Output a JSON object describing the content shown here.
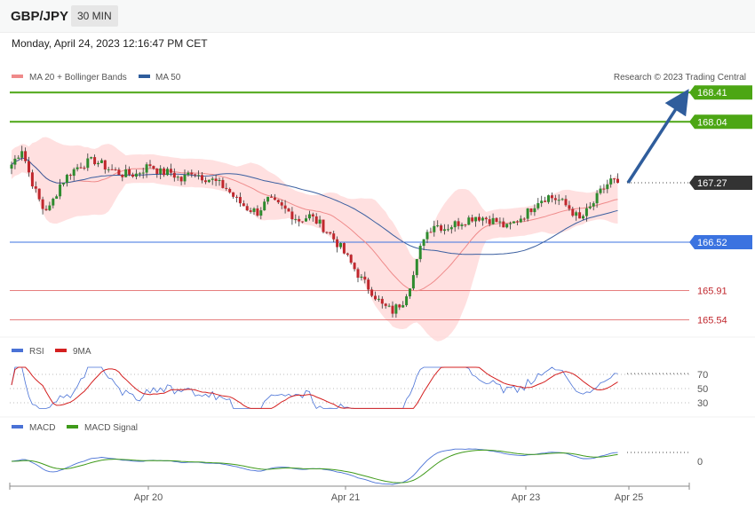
{
  "header": {
    "pair": "GBP/JPY",
    "timeframe": "30 MIN"
  },
  "datetime": "Monday, April 24, 2023 12:16:47 PM CET",
  "credit": "Research © 2023 Trading Central",
  "colors": {
    "up_candle": "#2e8b2e",
    "down_candle": "#c0272d",
    "target": "#4ca614",
    "pivot": "#3b73e0",
    "support": "#e06060",
    "current": "#333333",
    "bollinger": "#ffd5d5",
    "ma20": "#ef8a8a",
    "ma50": "#3b5fa0",
    "arrow": "#2f5d9c",
    "rsi": "#4a72d6",
    "rsi_ma": "#d42020",
    "macd": "#4a72d6",
    "macd_signal": "#3f9a1a"
  },
  "price_panel": {
    "legend": [
      {
        "label": "MA 20 + Bollinger Bands",
        "color": "#ef8a8a"
      },
      {
        "label": "MA 50",
        "color": "#2f5d9c"
      }
    ],
    "levels": [
      {
        "label": "168.41",
        "value": 168.41,
        "kind": "target"
      },
      {
        "label": "168.04",
        "value": 168.04,
        "kind": "target"
      },
      {
        "label": "167.27",
        "value": 167.27,
        "kind": "current"
      },
      {
        "label": "166.52",
        "value": 166.52,
        "kind": "pivot"
      },
      {
        "label": "165.91",
        "value": 165.91,
        "kind": "support"
      },
      {
        "label": "165.54",
        "value": 165.54,
        "kind": "support"
      }
    ]
  },
  "rsi_panel": {
    "legend": [
      {
        "label": "RSI",
        "color": "#4a72d6"
      },
      {
        "label": "9MA",
        "color": "#d42020"
      }
    ],
    "ticks": [
      {
        "label": "70",
        "value": 70
      },
      {
        "label": "50",
        "value": 50
      },
      {
        "label": "30",
        "value": 30
      }
    ]
  },
  "macd_panel": {
    "legend": [
      {
        "label": "MACD",
        "color": "#4a72d6"
      },
      {
        "label": "MACD Signal",
        "color": "#3f9a1a"
      }
    ],
    "ticks": [
      {
        "label": "0",
        "value": 0
      }
    ]
  },
  "x_axis": {
    "labels": [
      "Apr 20",
      "Apr 21",
      "Apr 23",
      "Apr 25"
    ]
  },
  "chart_data": {
    "type": "candlestick",
    "title": "GBP/JPY",
    "timeframe": "30 MIN",
    "x_ticks": [
      "Apr 20",
      "Apr 21",
      "Apr 23",
      "Apr 25"
    ],
    "price_levels": [
      168.41,
      168.04,
      167.27,
      166.52,
      165.91,
      165.54
    ],
    "price_path": [
      [
        0,
        167.5
      ],
      [
        3,
        167.7
      ],
      [
        5,
        167.4
      ],
      [
        7,
        167.15
      ],
      [
        9,
        166.95
      ],
      [
        11,
        166.95
      ],
      [
        14,
        167.25
      ],
      [
        17,
        167.4
      ],
      [
        20,
        167.5
      ],
      [
        24,
        167.55
      ],
      [
        28,
        167.45
      ],
      [
        32,
        167.38
      ],
      [
        36,
        167.38
      ],
      [
        40,
        167.5
      ],
      [
        43,
        167.4
      ],
      [
        46,
        167.4
      ],
      [
        49,
        167.3
      ],
      [
        52,
        167.42
      ],
      [
        55,
        167.35
      ],
      [
        58,
        167.3
      ],
      [
        62,
        167.2
      ],
      [
        65,
        167.05
      ],
      [
        68,
        166.95
      ],
      [
        71,
        166.9
      ],
      [
        74,
        167.05
      ],
      [
        77,
        166.98
      ],
      [
        80,
        166.9
      ],
      [
        83,
        166.8
      ],
      [
        86,
        166.85
      ],
      [
        89,
        166.75
      ],
      [
        92,
        166.62
      ],
      [
        95,
        166.45
      ],
      [
        98,
        166.25
      ],
      [
        101,
        166.05
      ],
      [
        104,
        165.9
      ],
      [
        107,
        165.72
      ],
      [
        110,
        165.65
      ],
      [
        113,
        165.78
      ],
      [
        116,
        166.1
      ],
      [
        119,
        166.6
      ],
      [
        122,
        166.75
      ],
      [
        125,
        166.7
      ],
      [
        128,
        166.75
      ],
      [
        131,
        166.8
      ],
      [
        134,
        166.85
      ],
      [
        137,
        166.82
      ],
      [
        140,
        166.78
      ],
      [
        143,
        166.7
      ],
      [
        146,
        166.8
      ],
      [
        149,
        166.9
      ],
      [
        152,
        167.05
      ],
      [
        155,
        167.1
      ],
      [
        158,
        167.05
      ],
      [
        161,
        166.95
      ],
      [
        164,
        166.8
      ],
      [
        167,
        166.95
      ],
      [
        170,
        167.15
      ],
      [
        173,
        167.3
      ],
      [
        175,
        167.27
      ]
    ],
    "rsi_scale": [
      30,
      50,
      70
    ],
    "macd_zero": 0
  }
}
